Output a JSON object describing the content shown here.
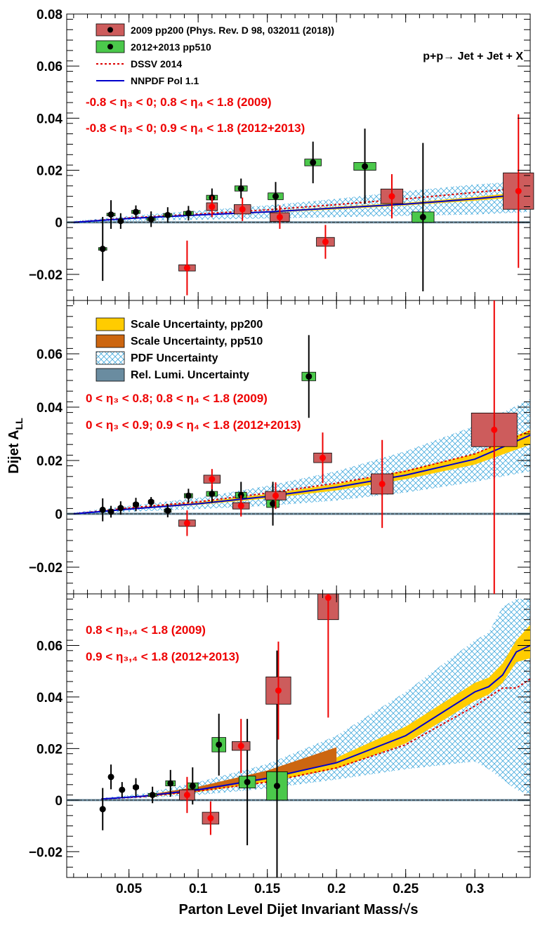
{
  "chart_data": {
    "type": "scatter",
    "xlabel": "Parton Level Dijet Invariant Mass/√s",
    "ylabel": "Dijet A_LL",
    "xlim": [
      0.005,
      0.34
    ],
    "x_ticks": [
      "0.05",
      "0.1",
      "0.15",
      "0.2",
      "0.25",
      "0.3"
    ],
    "x_tick_values": [
      0.05,
      0.1,
      0.15,
      0.2,
      0.25,
      0.3
    ],
    "process_label": "p+p→ Jet + Jet + X",
    "colors": {
      "pp200_box": "#cd5c5c",
      "pp200_marker": "#ff0000",
      "pp510_box": "#4bc84b",
      "pp510_marker": "#000000",
      "dssv": "#dd0000",
      "nnpdf": "#0000cc",
      "scale_pp200": "#ffcc00",
      "scale_pp510": "#cc6610",
      "pdf": "#44aadd",
      "lumi": "#6a8ca0"
    },
    "legend": {
      "pp200": "2009 pp200 (Phys. Rev. D 98, 032011 (2018))",
      "pp510": "2012+2013 pp510",
      "dssv": "DSSV 2014",
      "nnpdf": "NNPDF Pol 1.1",
      "scale_pp200": "Scale Uncertainty, pp200",
      "scale_pp510": "Scale Uncertainty, pp510",
      "pdf": "PDF Uncertainty",
      "lumi": "Rel. Lumi. Uncertainty"
    },
    "panels": [
      {
        "ylim": [
          -0.03,
          0.08
        ],
        "y_ticks": [
          -0.02,
          0,
          0.02,
          0.04,
          0.06,
          0.08
        ],
        "y_tick_labels": [
          "−0.02",
          "0",
          "0.02",
          "0.04",
          "0.06",
          "0.08"
        ],
        "label_2009": "-0.8 < η₃ < 0; 0.8 < η₄ < 1.8 (2009)",
        "label_2012": "-0.8 < η₃ < 0; 0.9 < η₄ < 1.8 (2012+2013)",
        "pp200": [
          {
            "x": 0.092,
            "y": -0.0175,
            "err": 0.0105,
            "xs": 0.006,
            "ys": 0.0012
          },
          {
            "x": 0.11,
            "y": 0.006,
            "err": 0.004,
            "xs": 0.004,
            "ys": 0.0015
          },
          {
            "x": 0.132,
            "y": 0.005,
            "err": 0.0045,
            "xs": 0.006,
            "ys": 0.0018
          },
          {
            "x": 0.159,
            "y": 0.002,
            "err": 0.0045,
            "xs": 0.007,
            "ys": 0.0017
          },
          {
            "x": 0.192,
            "y": -0.0075,
            "err": 0.0065,
            "xs": 0.0065,
            "ys": 0.0017
          },
          {
            "x": 0.24,
            "y": 0.01,
            "err": 0.0085,
            "xs": 0.008,
            "ys": 0.0028
          },
          {
            "x": 0.3315,
            "y": 0.012,
            "err": 0.0295,
            "xs": 0.011,
            "ys": 0.007
          }
        ],
        "pp510": [
          {
            "x": 0.031,
            "y": -0.0102,
            "err": 0.0123,
            "xs": 0.003,
            "ys": 0.0005
          },
          {
            "x": 0.037,
            "y": 0.003,
            "err": 0.0055,
            "xs": 0.003,
            "ys": 0.0005
          },
          {
            "x": 0.044,
            "y": 0.0005,
            "err": 0.003,
            "xs": 0.002,
            "ys": 0.0004
          },
          {
            "x": 0.055,
            "y": 0.004,
            "err": 0.0025,
            "xs": 0.003,
            "ys": 0.0006
          },
          {
            "x": 0.066,
            "y": 0.0012,
            "err": 0.003,
            "xs": 0.003,
            "ys": 0.0005
          },
          {
            "x": 0.078,
            "y": 0.0028,
            "err": 0.003,
            "xs": 0.003,
            "ys": 0.0006
          },
          {
            "x": 0.093,
            "y": 0.0035,
            "err": 0.0028,
            "xs": 0.0035,
            "ys": 0.0007
          },
          {
            "x": 0.11,
            "y": 0.0095,
            "err": 0.0035,
            "xs": 0.004,
            "ys": 0.0009
          },
          {
            "x": 0.131,
            "y": 0.013,
            "err": 0.0038,
            "xs": 0.0045,
            "ys": 0.001
          },
          {
            "x": 0.156,
            "y": 0.01,
            "err": 0.0055,
            "xs": 0.0055,
            "ys": 0.0013
          },
          {
            "x": 0.183,
            "y": 0.023,
            "err": 0.008,
            "xs": 0.006,
            "ys": 0.0013
          },
          {
            "x": 0.2205,
            "y": 0.0215,
            "err": 0.0145,
            "xs": 0.008,
            "ys": 0.0015
          },
          {
            "x": 0.2625,
            "y": 0.002,
            "err": 0.0285,
            "xs": 0.008,
            "ys": 0.002
          }
        ],
        "theory_x": [
          0.01,
          0.05,
          0.1,
          0.15,
          0.2,
          0.25,
          0.3,
          0.34
        ],
        "nnpdf_y": [
          0.0,
          0.0015,
          0.0028,
          0.004,
          0.0055,
          0.007,
          0.009,
          0.011
        ],
        "dssv_y": [
          0.0,
          0.0017,
          0.0032,
          0.0048,
          0.0068,
          0.009,
          0.0115,
          0.0135
        ],
        "scale200_lo": [
          0.0,
          0.0014,
          0.0026,
          0.0037,
          0.005,
          0.0065,
          0.0083,
          0.01
        ],
        "scale200_hi": [
          0.0,
          0.0016,
          0.003,
          0.0043,
          0.006,
          0.0075,
          0.0097,
          0.012
        ],
        "pdf_lo": [
          -0.0005,
          0.0005,
          0.001,
          0.0015,
          0.002,
          0.0025,
          0.003,
          0.004
        ],
        "pdf_hi": [
          0.0005,
          0.0025,
          0.0045,
          0.0065,
          0.009,
          0.012,
          0.0145,
          0.016
        ]
      },
      {
        "ylim": [
          -0.03,
          0.08
        ],
        "y_ticks": [
          -0.02,
          0,
          0.02,
          0.04,
          0.06
        ],
        "y_tick_labels": [
          "−0.02",
          "0",
          "0.02",
          "0.04",
          "0.06"
        ],
        "label_2009": "0 < η₃ < 0.8; 0.8 < η₄ < 1.8 (2009)",
        "label_2012": "0 < η₃ < 0.9; 0.9 < η₄ < 1.8 (2012+2013)",
        "pp200": [
          {
            "x": 0.092,
            "y": -0.0035,
            "err": 0.0048,
            "xs": 0.006,
            "ys": 0.0012
          },
          {
            "x": 0.11,
            "y": 0.013,
            "err": 0.0038,
            "xs": 0.006,
            "ys": 0.0015
          },
          {
            "x": 0.131,
            "y": 0.003,
            "err": 0.004,
            "xs": 0.006,
            "ys": 0.0012
          },
          {
            "x": 0.156,
            "y": 0.0068,
            "err": 0.005,
            "xs": 0.0075,
            "ys": 0.0016
          },
          {
            "x": 0.19,
            "y": 0.021,
            "err": 0.0095,
            "xs": 0.0065,
            "ys": 0.0018
          },
          {
            "x": 0.233,
            "y": 0.0112,
            "err": 0.0165,
            "xs": 0.008,
            "ys": 0.0038
          },
          {
            "x": 0.314,
            "y": 0.0315,
            "err": 0.0815,
            "xs": 0.0165,
            "ys": 0.0063
          }
        ],
        "pp510": [
          {
            "x": 0.031,
            "y": 0.0015,
            "err": 0.0043,
            "xs": 0.0015,
            "ys": 0.0005
          },
          {
            "x": 0.037,
            "y": 0.0008,
            "err": 0.0022,
            "xs": 0.0015,
            "ys": 0.0004
          },
          {
            "x": 0.044,
            "y": 0.0022,
            "err": 0.0025,
            "xs": 0.002,
            "ys": 0.0005
          },
          {
            "x": 0.055,
            "y": 0.0035,
            "err": 0.0025,
            "xs": 0.002,
            "ys": 0.0006
          },
          {
            "x": 0.066,
            "y": 0.0045,
            "err": 0.0018,
            "xs": 0.002,
            "ys": 0.0006
          },
          {
            "x": 0.078,
            "y": 0.0012,
            "err": 0.0025,
            "xs": 0.0025,
            "ys": 0.0006
          },
          {
            "x": 0.093,
            "y": 0.0068,
            "err": 0.0026,
            "xs": 0.003,
            "ys": 0.0008
          },
          {
            "x": 0.11,
            "y": 0.0075,
            "err": 0.0033,
            "xs": 0.004,
            "ys": 0.0009
          },
          {
            "x": 0.131,
            "y": 0.007,
            "err": 0.005,
            "xs": 0.004,
            "ys": 0.0011
          },
          {
            "x": 0.154,
            "y": 0.0038,
            "err": 0.0082,
            "xs": 0.0045,
            "ys": 0.0014
          },
          {
            "x": 0.18,
            "y": 0.0515,
            "err": 0.0155,
            "xs": 0.005,
            "ys": 0.0016
          }
        ],
        "theory_x": [
          0.01,
          0.05,
          0.1,
          0.15,
          0.2,
          0.25,
          0.3,
          0.34
        ],
        "nnpdf_y": [
          0.0,
          0.0018,
          0.0038,
          0.0065,
          0.01,
          0.0145,
          0.0205,
          0.0295
        ],
        "dssv_y": [
          0.0,
          0.0022,
          0.0045,
          0.0078,
          0.0115,
          0.016,
          0.0225,
          0.031
        ],
        "scale200_lo": [
          0.0,
          0.0016,
          0.0034,
          0.0058,
          0.0088,
          0.013,
          0.0185,
          0.026
        ],
        "scale200_hi": [
          0.0,
          0.0021,
          0.0043,
          0.0074,
          0.0112,
          0.0162,
          0.0225,
          0.0315
        ],
        "pdf_lo": [
          -0.0003,
          0.0008,
          0.0018,
          0.003,
          0.005,
          0.008,
          0.012,
          0.016
        ],
        "pdf_hi": [
          0.0005,
          0.003,
          0.006,
          0.0105,
          0.016,
          0.0235,
          0.033,
          0.043
        ]
      },
      {
        "ylim": [
          -0.03,
          0.08
        ],
        "y_ticks": [
          -0.02,
          0,
          0.02,
          0.04,
          0.06
        ],
        "y_tick_labels": [
          "−0.02",
          "0",
          "0.02",
          "0.04",
          "0.06"
        ],
        "label_2009": "0.8 < η₃,₄ < 1.8 (2009)",
        "label_2012": "0.9 < η₃,₄ < 1.8 (2012+2013)",
        "pp200": [
          {
            "x": 0.092,
            "y": 0.002,
            "err": 0.007,
            "xs": 0.0055,
            "ys": 0.002
          },
          {
            "x": 0.109,
            "y": -0.007,
            "err": 0.0065,
            "xs": 0.006,
            "ys": 0.0023
          },
          {
            "x": 0.131,
            "y": 0.021,
            "err": 0.0105,
            "xs": 0.0065,
            "ys": 0.0017
          },
          {
            "x": 0.158,
            "y": 0.0425,
            "err": 0.019,
            "xs": 0.009,
            "ys": 0.0053
          },
          {
            "x": 0.194,
            "y": 0.0785,
            "err": 0.0465,
            "xs": 0.0075,
            "ys": 0.0085
          }
        ],
        "pp510": [
          {
            "x": 0.031,
            "y": -0.0035,
            "err": 0.0082,
            "xs": 0.0015,
            "ys": 0.0004
          },
          {
            "x": 0.037,
            "y": 0.009,
            "err": 0.0048,
            "xs": 0.0015,
            "ys": 0.0004
          },
          {
            "x": 0.045,
            "y": 0.004,
            "err": 0.003,
            "xs": 0.0015,
            "ys": 0.0005
          },
          {
            "x": 0.055,
            "y": 0.005,
            "err": 0.0035,
            "xs": 0.002,
            "ys": 0.0006
          },
          {
            "x": 0.067,
            "y": 0.002,
            "err": 0.0032,
            "xs": 0.003,
            "ys": 0.0006
          },
          {
            "x": 0.08,
            "y": 0.0065,
            "err": 0.0052,
            "xs": 0.0035,
            "ys": 0.001
          },
          {
            "x": 0.096,
            "y": 0.0055,
            "err": 0.0072,
            "xs": 0.004,
            "ys": 0.0012
          },
          {
            "x": 0.115,
            "y": 0.0215,
            "err": 0.012,
            "xs": 0.005,
            "ys": 0.0028
          },
          {
            "x": 0.1355,
            "y": 0.007,
            "err": 0.0245,
            "xs": 0.006,
            "ys": 0.0023
          },
          {
            "x": 0.157,
            "y": 0.0055,
            "err": 0.0525,
            "xs": 0.0075,
            "ys": 0.0055
          }
        ],
        "theory_x": [
          0.03,
          0.06,
          0.1,
          0.15,
          0.2,
          0.25,
          0.3,
          0.31,
          0.32,
          0.33,
          0.34
        ],
        "nnpdf_y": [
          0.0004,
          0.0015,
          0.004,
          0.0085,
          0.0145,
          0.025,
          0.042,
          0.044,
          0.0485,
          0.0575,
          0.06
        ],
        "dssv_y": [
          0.0004,
          0.0013,
          0.0035,
          0.007,
          0.0125,
          0.0215,
          0.0365,
          0.04,
          0.0435,
          0.0435,
          0.047
        ],
        "scale200_lo": [
          0.0003,
          0.0012,
          0.0032,
          0.007,
          0.0122,
          0.022,
          0.0385,
          0.041,
          0.0455,
          0.0535,
          0.055
        ],
        "scale200_hi": [
          0.0006,
          0.0018,
          0.0047,
          0.0097,
          0.0165,
          0.0285,
          0.0455,
          0.0475,
          0.053,
          0.062,
          0.068
        ],
        "scale510_x": [
          0.06,
          0.1,
          0.15,
          0.2
        ],
        "scale510_lo": [
          0.0012,
          0.0035,
          0.008,
          0.0145
        ],
        "scale510_hi": [
          0.0018,
          0.0052,
          0.0115,
          0.0205
        ],
        "pdf_lo": [
          0.0,
          0.0008,
          0.002,
          0.0045,
          0.008,
          0.012,
          0.015,
          0.012,
          0.008,
          0.004,
          0.002
        ],
        "pdf_hi": [
          0.0008,
          0.0025,
          0.007,
          0.014,
          0.025,
          0.042,
          0.062,
          0.065,
          0.075,
          0.078,
          0.078
        ]
      }
    ]
  }
}
